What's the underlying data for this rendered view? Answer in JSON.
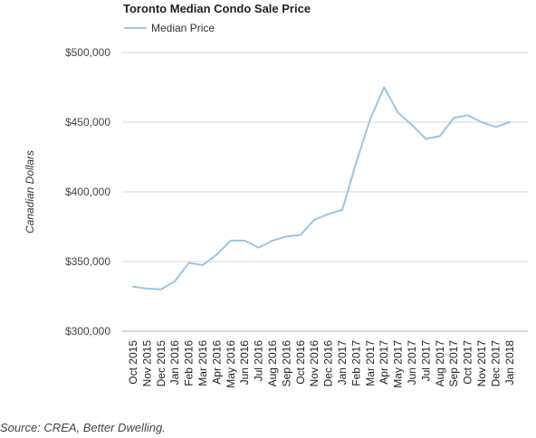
{
  "source": "Source: CREA, Better Dwelling.",
  "chart_data": {
    "type": "line",
    "title": "Toronto Median Condo Sale Price",
    "ylabel": "Canadian Dollars",
    "xlabel": "",
    "ylim": [
      300000,
      500000
    ],
    "y_ticks": [
      300000,
      350000,
      400000,
      450000,
      500000
    ],
    "y_tick_labels": [
      "$300,000",
      "$350,000",
      "$400,000",
      "$450,000",
      "$500,000"
    ],
    "grid": "horizontal",
    "legend": "top-left",
    "categories": [
      "Oct 2015",
      "Nov 2015",
      "Dec 2015",
      "Jan 2016",
      "Feb 2016",
      "Mar 2016",
      "Apr 2016",
      "May 2016",
      "Jun 2016",
      "Jul 2016",
      "Aug 2016",
      "Sep 2016",
      "Oct 2016",
      "Nov 2016",
      "Dec 2016",
      "Jan 2017",
      "Feb 2017",
      "Mar 2017",
      "Apr 2017",
      "May 2017",
      "Jun 2017",
      "Jul 2017",
      "Aug 2017",
      "Sep 2017",
      "Oct 2017",
      "Nov 2017",
      "Dec 2017",
      "Jan 2018"
    ],
    "series": [
      {
        "name": "Median Price",
        "color": "#9cc5e3",
        "values": [
          332000,
          330500,
          330000,
          336000,
          349000,
          347500,
          355000,
          365000,
          365000,
          360000,
          365000,
          368000,
          369000,
          380000,
          384000,
          387000,
          421000,
          452000,
          475000,
          457000,
          448000,
          438000,
          440000,
          453000,
          455000,
          450000,
          446500,
          450000
        ]
      }
    ]
  }
}
